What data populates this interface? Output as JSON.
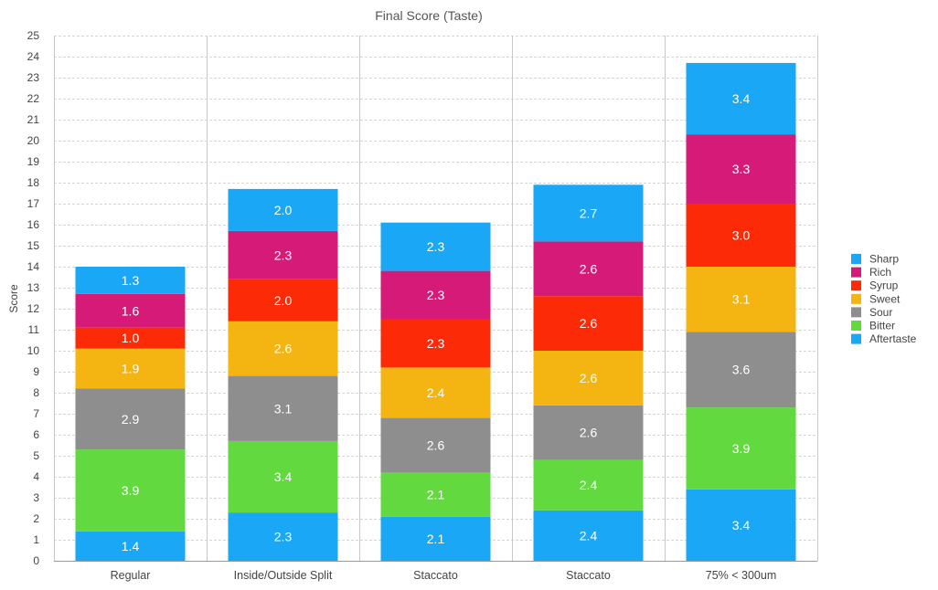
{
  "chart_data": {
    "type": "bar",
    "stacked": true,
    "title": "Final Score (Taste)",
    "xlabel": "",
    "ylabel": "Score",
    "ylim": [
      0,
      25
    ],
    "yticks": [
      0,
      1,
      2,
      3,
      4,
      5,
      6,
      7,
      8,
      9,
      10,
      11,
      12,
      13,
      14,
      15,
      16,
      17,
      18,
      19,
      20,
      21,
      22,
      23,
      24,
      25
    ],
    "categories": [
      "Regular",
      "Inside/Outside Split",
      "Staccato",
      "Staccato",
      "75% < 300um"
    ],
    "series": [
      {
        "name": "Aftertaste",
        "color": "#1aa7f5",
        "values": [
          1.4,
          2.3,
          2.1,
          2.4,
          3.4
        ]
      },
      {
        "name": "Bitter",
        "color": "#62d93f",
        "values": [
          3.9,
          3.4,
          2.1,
          2.4,
          3.9
        ]
      },
      {
        "name": "Sour",
        "color": "#8e8e8e",
        "values": [
          2.9,
          3.1,
          2.6,
          2.6,
          3.6
        ]
      },
      {
        "name": "Sweet",
        "color": "#f4b411",
        "values": [
          1.9,
          2.6,
          2.4,
          2.6,
          3.1
        ]
      },
      {
        "name": "Syrup",
        "color": "#fd2a08",
        "values": [
          1.0,
          2.0,
          2.3,
          2.6,
          3.0
        ]
      },
      {
        "name": "Rich",
        "color": "#d51a78",
        "values": [
          1.6,
          2.3,
          2.3,
          2.6,
          3.3
        ]
      },
      {
        "name": "Sharp",
        "color": "#1aa7f5",
        "values": [
          1.3,
          2.0,
          2.3,
          2.7,
          3.4
        ]
      }
    ],
    "grid": true,
    "legend_position": "right"
  }
}
